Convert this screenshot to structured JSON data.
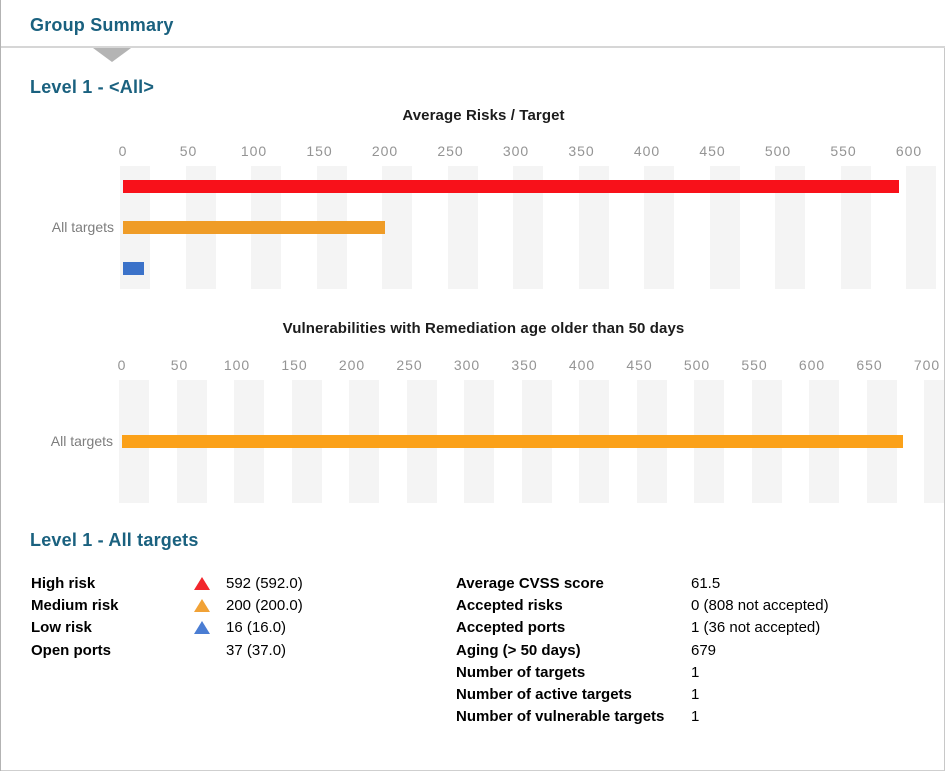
{
  "header": {
    "title": "Group Summary"
  },
  "sections": {
    "charts_heading": "Level 1 - <All>",
    "details_heading": "Level 1 - All targets"
  },
  "colors": {
    "heading": "#1a617f",
    "axis_label": "#949494",
    "category_label": "#7d7d7d",
    "grid_stripe": "#f4f4f4",
    "bar_red": "#f8111a",
    "bar_orange": "#ef9c27",
    "bar_orange_bright": "#fba119",
    "bar_blue": "#3b72c9",
    "marker_red": "#f2262c",
    "marker_orange": "#f1a236",
    "marker_blue": "#4a7dd3"
  },
  "chart_data": [
    {
      "type": "bar",
      "orientation": "horizontal",
      "title": "Average Risks / Target",
      "categories": [
        "All targets"
      ],
      "series": [
        {
          "name": "High risk",
          "color": "#f8111a",
          "values": [
            592
          ]
        },
        {
          "name": "Medium risk",
          "color": "#ef9c27",
          "values": [
            200
          ]
        },
        {
          "name": "Low risk",
          "color": "#3b72c9",
          "values": [
            16
          ]
        }
      ],
      "xlim": [
        0,
        600
      ],
      "xticks": [
        0,
        50,
        100,
        150,
        200,
        250,
        300,
        350,
        400,
        450,
        500,
        550,
        600
      ],
      "grid": "vertical-stripes",
      "legend": "none"
    },
    {
      "type": "bar",
      "orientation": "horizontal",
      "title": "Vulnerabilities with Remediation age older than 50 days",
      "categories": [
        "All targets"
      ],
      "series": [
        {
          "name": "Aging > 50 days",
          "color": "#fba119",
          "values": [
            679
          ]
        }
      ],
      "xlim": [
        0,
        700
      ],
      "xticks": [
        0,
        50,
        100,
        150,
        200,
        250,
        300,
        350,
        400,
        450,
        500,
        550,
        600,
        650,
        700
      ],
      "grid": "vertical-stripes",
      "legend": "none"
    }
  ],
  "details": {
    "left": [
      {
        "label": "High risk",
        "marker": "triangle",
        "marker_color": "#f2262c",
        "value": "592 (592.0)"
      },
      {
        "label": "Medium risk",
        "marker": "triangle",
        "marker_color": "#f1a236",
        "value": "200 (200.0)"
      },
      {
        "label": "Low risk",
        "marker": "triangle",
        "marker_color": "#4a7dd3",
        "value": "16 (16.0)"
      },
      {
        "label": "Open ports",
        "marker": "none",
        "marker_color": "",
        "value": "37 (37.0)"
      }
    ],
    "right": [
      {
        "label": "Average CVSS score",
        "value": "61.5"
      },
      {
        "label": "Accepted risks",
        "value": "0 (808 not accepted)"
      },
      {
        "label": "Accepted ports",
        "value": "1 (36 not accepted)"
      },
      {
        "label": "Aging (> 50 days)",
        "value": "679"
      },
      {
        "label": "Number of targets",
        "value": "1"
      },
      {
        "label": "Number of active targets",
        "value": "1"
      },
      {
        "label": "Number of vulnerable targets",
        "value": "1"
      }
    ]
  }
}
